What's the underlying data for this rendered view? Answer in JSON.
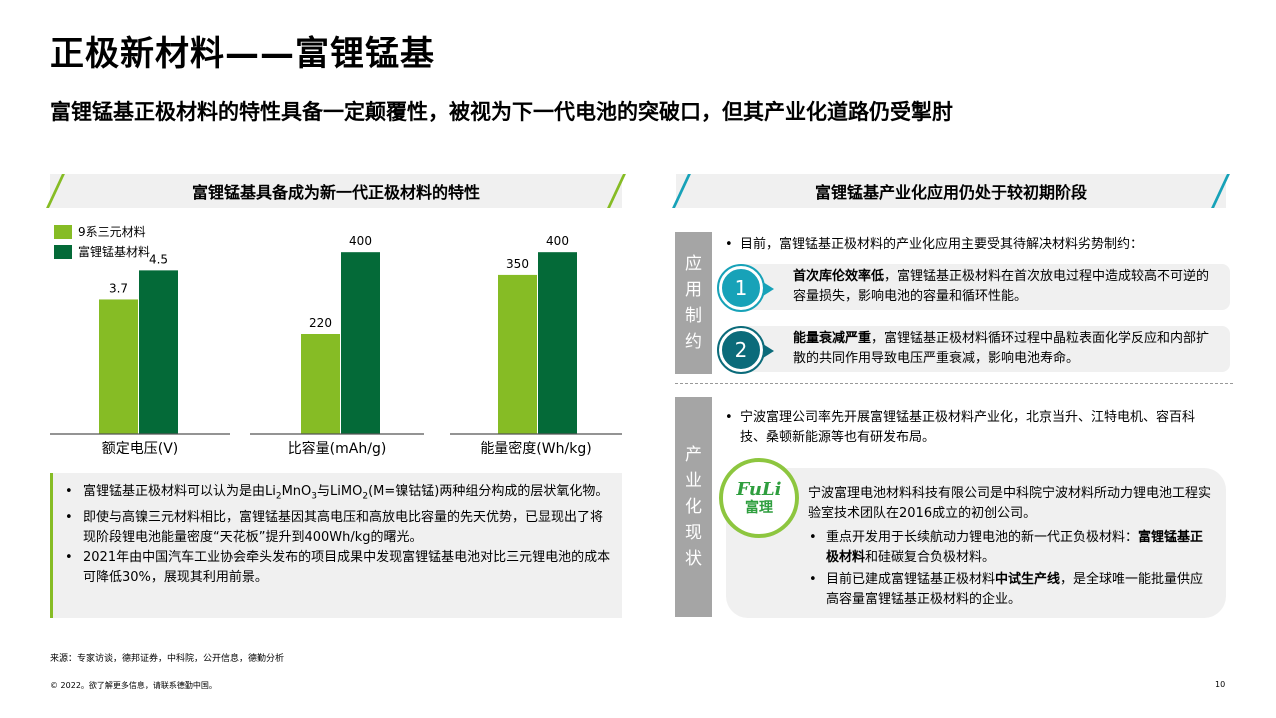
{
  "title": "正极新材料——富锂锰基",
  "subtitle": "富锂锰基正极材料的特性具备一定颠覆性，被视为下一代电池的突破口，但其产业化道路仍受掣肘",
  "colors": {
    "light_green": "#86bc25",
    "dark_green": "#046a38",
    "teal": "#17a2b8",
    "dark_teal": "#0b6b7a",
    "gray_tag": "#a5a5a5"
  },
  "left": {
    "header": "富锂锰基具备成为新一代正极材料的特性",
    "notes": {
      "n1_a": "富锂锰基正极材料可以认为是由Li",
      "n1_s1": "2",
      "n1_b": "MnO",
      "n1_s2": "3",
      "n1_c": "与LiMO",
      "n1_s3": "2",
      "n1_d": "(M=镍钴锰)两种组分构成的层状氧化物。",
      "n2": "即使与高镍三元材料相比，富锂锰基因其高电压和高放电比容量的先天优势，已显现出了将现阶段锂电池能量密度“天花板”提升到400Wh/kg的曙光。",
      "n3": "2021年由中国汽车工业协会牵头发布的项目成果中发现富锂锰基电池对比三元锂电池的成本可降低30%，展现其利用前景。"
    }
  },
  "chart_data": [
    {
      "type": "bar",
      "categories": [
        "额定电压(V)"
      ],
      "series": [
        {
          "name": "9系三元材料",
          "values": [
            3.7
          ]
        },
        {
          "name": "富锂锰基材料",
          "values": [
            4.5
          ]
        }
      ],
      "ylim": [
        0,
        5.5
      ]
    },
    {
      "type": "bar",
      "categories": [
        "比容量(mAh/g)"
      ],
      "series": [
        {
          "name": "9系三元材料",
          "values": [
            220
          ]
        },
        {
          "name": "富锂锰基材料",
          "values": [
            400
          ]
        }
      ],
      "ylim": [
        0,
        440
      ]
    },
    {
      "type": "bar",
      "categories": [
        "能量密度(Wh/kg)"
      ],
      "series": [
        {
          "name": "9系三元材料",
          "values": [
            350
          ]
        },
        {
          "name": "富锂锰基材料",
          "values": [
            400
          ]
        }
      ],
      "ylim": [
        0,
        440
      ]
    }
  ],
  "right": {
    "header": "富锂锰基产业化应用仍处于较初期阶段",
    "tag1": [
      "应",
      "用",
      "制",
      "约"
    ],
    "tag2": [
      "产",
      "业",
      "化",
      "现",
      "状"
    ],
    "intro": "目前，富锂锰基正极材料的产业化应用主要受其待解决材料劣势制约：",
    "items": [
      {
        "num": "1",
        "bold": "首次库伦效率低",
        "text": "，富锂锰基正极材料在首次放电过程中造成较高不可逆的容量损失，影响电池的容量和循环性能。"
      },
      {
        "num": "2",
        "bold": "能量衰减严重",
        "text": "，富锂锰基正极材料循环过程中晶粒表面化学反应和内部扩散的共同作用导致电压严重衰减，影响电池寿命。"
      }
    ],
    "status_intro": "宁波富理公司率先开展富锂锰基正极材料产业化，北京当升、江特电机、容百科技、桑顿新能源等也有研发布局。",
    "logo_text": "FuLi",
    "logo_cn": "富理",
    "company_desc": "宁波富理电池材料科技有限公司是中科院宁波材料所动力锂电池工程实验室技术团队在2016成立的初创公司。",
    "sub1_a": "重点开发用于长续航动力锂电池的新一代正负极材料：",
    "sub1_b": "富锂锰基正极材料",
    "sub1_c": "和硅碳复合负极材料。",
    "sub2_a": "目前已建成富锂锰基正极材料",
    "sub2_b": "中试生产线",
    "sub2_c": "，是全球唯一能批量供应高容量富锂锰基正极材料的企业。"
  },
  "source": "来源：专家访谈，德邦证券，中科院，公开信息，德勤分析",
  "footer": "© 2022。欲了解更多信息，请联系德勤中国。",
  "page_number": "10"
}
